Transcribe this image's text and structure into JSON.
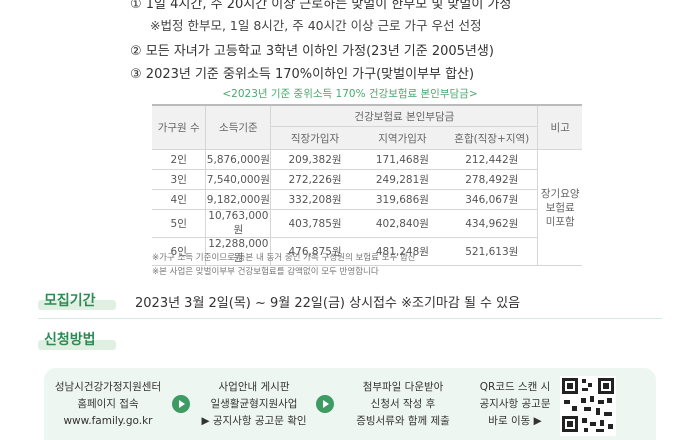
{
  "criteria": {
    "line1_partial": "① 1일 4시간, 주 20시간 이상 근로하는 맞벌이 한부모 및 맞벌이 가정",
    "note1": "※법정 한부모, 1일 8시간, 주 40시간 이상 근로 가구 우선 선정",
    "line2": "모든 자녀가 고등학교 3학년 이하인 가정(23년 기준 2005년생)",
    "line2_num": "②",
    "line3": "2023년 기준 중위소득 170%이하인 가구(맞벌이부부 합산)",
    "line3_num": "③"
  },
  "table": {
    "caption": "<2023년 기준 중위소득 170% 건강보험료 본인부담금>",
    "headers": {
      "household": "가구원 수",
      "income": "소득기준",
      "premium_group": "건강보험료 본인부담금",
      "employee": "직장가입자",
      "regional": "지역가입자",
      "mixed": "혼합(직장+지역)",
      "remark": "비고"
    },
    "rows": [
      {
        "size": "2인",
        "income": "5,876,000원",
        "employee": "209,382원",
        "regional": "171,468원",
        "mixed": "212,442원"
      },
      {
        "size": "3인",
        "income": "7,540,000원",
        "employee": "272,226원",
        "regional": "249,281원",
        "mixed": "278,492원"
      },
      {
        "size": "4인",
        "income": "9,182,000원",
        "employee": "332,208원",
        "regional": "319,686원",
        "mixed": "346,067원"
      },
      {
        "size": "5인",
        "income": "10,763,000원",
        "employee": "403,785원",
        "regional": "402,840원",
        "mixed": "434,962원"
      },
      {
        "size": "6인",
        "income": "12,288,000원",
        "employee": "476,875원",
        "regional": "481,248원",
        "mixed": "521,613원"
      }
    ],
    "remark_lines": [
      "장기요양",
      "보험료",
      "미포함"
    ],
    "notes": [
      "※가구 소득 기준이므로 등본 내 동거 중인 가족 구성원의 보험료 모두 합산",
      "※본 사업은 맞벌이부부 건강보험료를 감액없이 모두 반영합니다"
    ]
  },
  "recruit": {
    "label": "모집기간",
    "text": "2023년 3월 2일(목) ~ 9월 22일(금) 상시접수 ※조기마감 될 수 있음"
  },
  "apply": {
    "label": "신청방법",
    "steps": [
      {
        "lines": [
          "성남시건강가정지원센터",
          "홈페이지 접속",
          "www.family.go.kr"
        ]
      },
      {
        "lines": [
          "사업안내 게시판",
          "일생활균형지원사업",
          "▶ 공지사항 공고문 확인"
        ]
      },
      {
        "lines": [
          "첨부파일 다운받아",
          "신청서 작성 후",
          "증빙서류와 함께 제출"
        ]
      },
      {
        "lines": [
          "QR코드 스캔 시",
          "공지사항 공고문",
          "바로 이동 ▶"
        ]
      }
    ]
  },
  "colors": {
    "accent": "#2f8a55",
    "caption": "#4aa86f",
    "panel": "#eef6f1"
  },
  "icons": {
    "arrow": "chevron-right-icon",
    "qr": "qr-code-icon"
  }
}
